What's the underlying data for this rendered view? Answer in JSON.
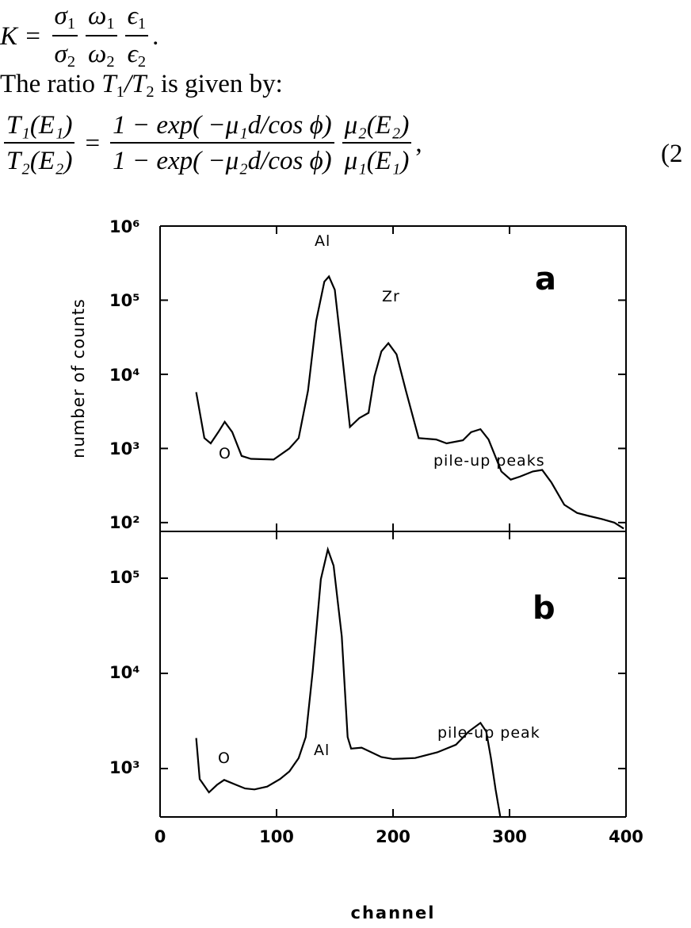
{
  "equation_1": {
    "lhs": "K =",
    "fractions": [
      {
        "num": "σ",
        "num_sub": "1",
        "den": "σ",
        "den_sub": "2"
      },
      {
        "num": "ω",
        "num_sub": "1",
        "den": "ω",
        "den_sub": "2"
      },
      {
        "num": "ϵ",
        "num_sub": "1",
        "den": "ϵ",
        "den_sub": "2"
      }
    ],
    "end": "."
  },
  "text_line": {
    "prefix": "The ratio ",
    "T": "T",
    "sub1": "1",
    "slash": "/T",
    "sub2": "2",
    "suffix": " is given by:"
  },
  "equation_2": {
    "lhs_num": "T₁(E₁)",
    "lhs_den": "T₂(E₂)",
    "eq": "=",
    "mid_num": "1 − exp( −μ₁d/cos ϕ)",
    "mid_den": "1 − exp( −μ₂d/cos ϕ)",
    "right_num": "μ₂(E₂)",
    "right_den": "μ₁(E₁)",
    "end": ",",
    "number": "(2"
  },
  "chart_data": [
    {
      "type": "line",
      "panel": "a",
      "panel_label": "a",
      "ylabel": "number of counts",
      "xlabel": "",
      "xlim": [
        0,
        400
      ],
      "ylim": [
        76,
        1000000
      ],
      "yscale": "log",
      "yticks": [
        "10⁶",
        "10⁵",
        "10⁴",
        "10³",
        "10²"
      ],
      "annotations": [
        "O",
        "Al",
        "Zr",
        "pile-up peaks"
      ],
      "x": [
        31,
        38,
        43.5,
        50,
        55.5,
        62,
        70,
        78,
        97.5,
        111,
        119,
        127,
        134,
        141,
        145,
        150,
        157,
        163,
        171,
        179,
        184,
        190,
        196,
        203,
        211,
        222,
        237,
        246,
        260,
        267,
        275,
        282,
        293,
        301,
        309,
        320,
        328,
        336,
        347,
        358,
        368,
        379,
        390,
        398
      ],
      "y": [
        5750,
        1380,
        1170,
        1660,
        2290,
        1660,
        794,
        724,
        708,
        1000,
        1380,
        6030,
        52500,
        178000,
        209000,
        138000,
        14500,
        1950,
        2570,
        3020,
        9330,
        20400,
        26300,
        18600,
        6030,
        1380,
        1320,
        1170,
        1290,
        1660,
        1820,
        1320,
        490,
        380,
        417,
        490,
        513,
        347,
        174,
        135,
        123,
        112,
        100,
        83
      ]
    },
    {
      "type": "line",
      "panel": "b",
      "panel_label": "b",
      "xlabel": "channel",
      "xlim": [
        0,
        400
      ],
      "ylim": [
        310,
        310000
      ],
      "yscale": "log",
      "xticks": [
        "0",
        "100",
        "200",
        "300",
        "400"
      ],
      "yticks": [
        "10⁵",
        "10⁴",
        "10³"
      ],
      "annotations": [
        "O",
        "Al",
        "pile-up peak"
      ],
      "x": [
        31,
        34,
        42,
        49,
        55,
        65,
        73,
        81,
        92,
        103,
        111,
        119,
        125,
        131,
        138,
        144,
        149,
        156,
        161,
        164,
        173,
        190,
        200,
        219,
        238,
        254,
        265,
        275,
        280,
        284,
        288,
        292
      ],
      "y": [
        2090,
        776,
        562,
        676,
        759,
        676,
        617,
        603,
        646,
        776,
        933,
        1290,
        2140,
        10500,
        97700,
        200000,
        135000,
        24500,
        2140,
        1620,
        1660,
        1320,
        1260,
        1290,
        1480,
        1780,
        2450,
        3020,
        2450,
        1290,
        603,
        316
      ]
    }
  ]
}
